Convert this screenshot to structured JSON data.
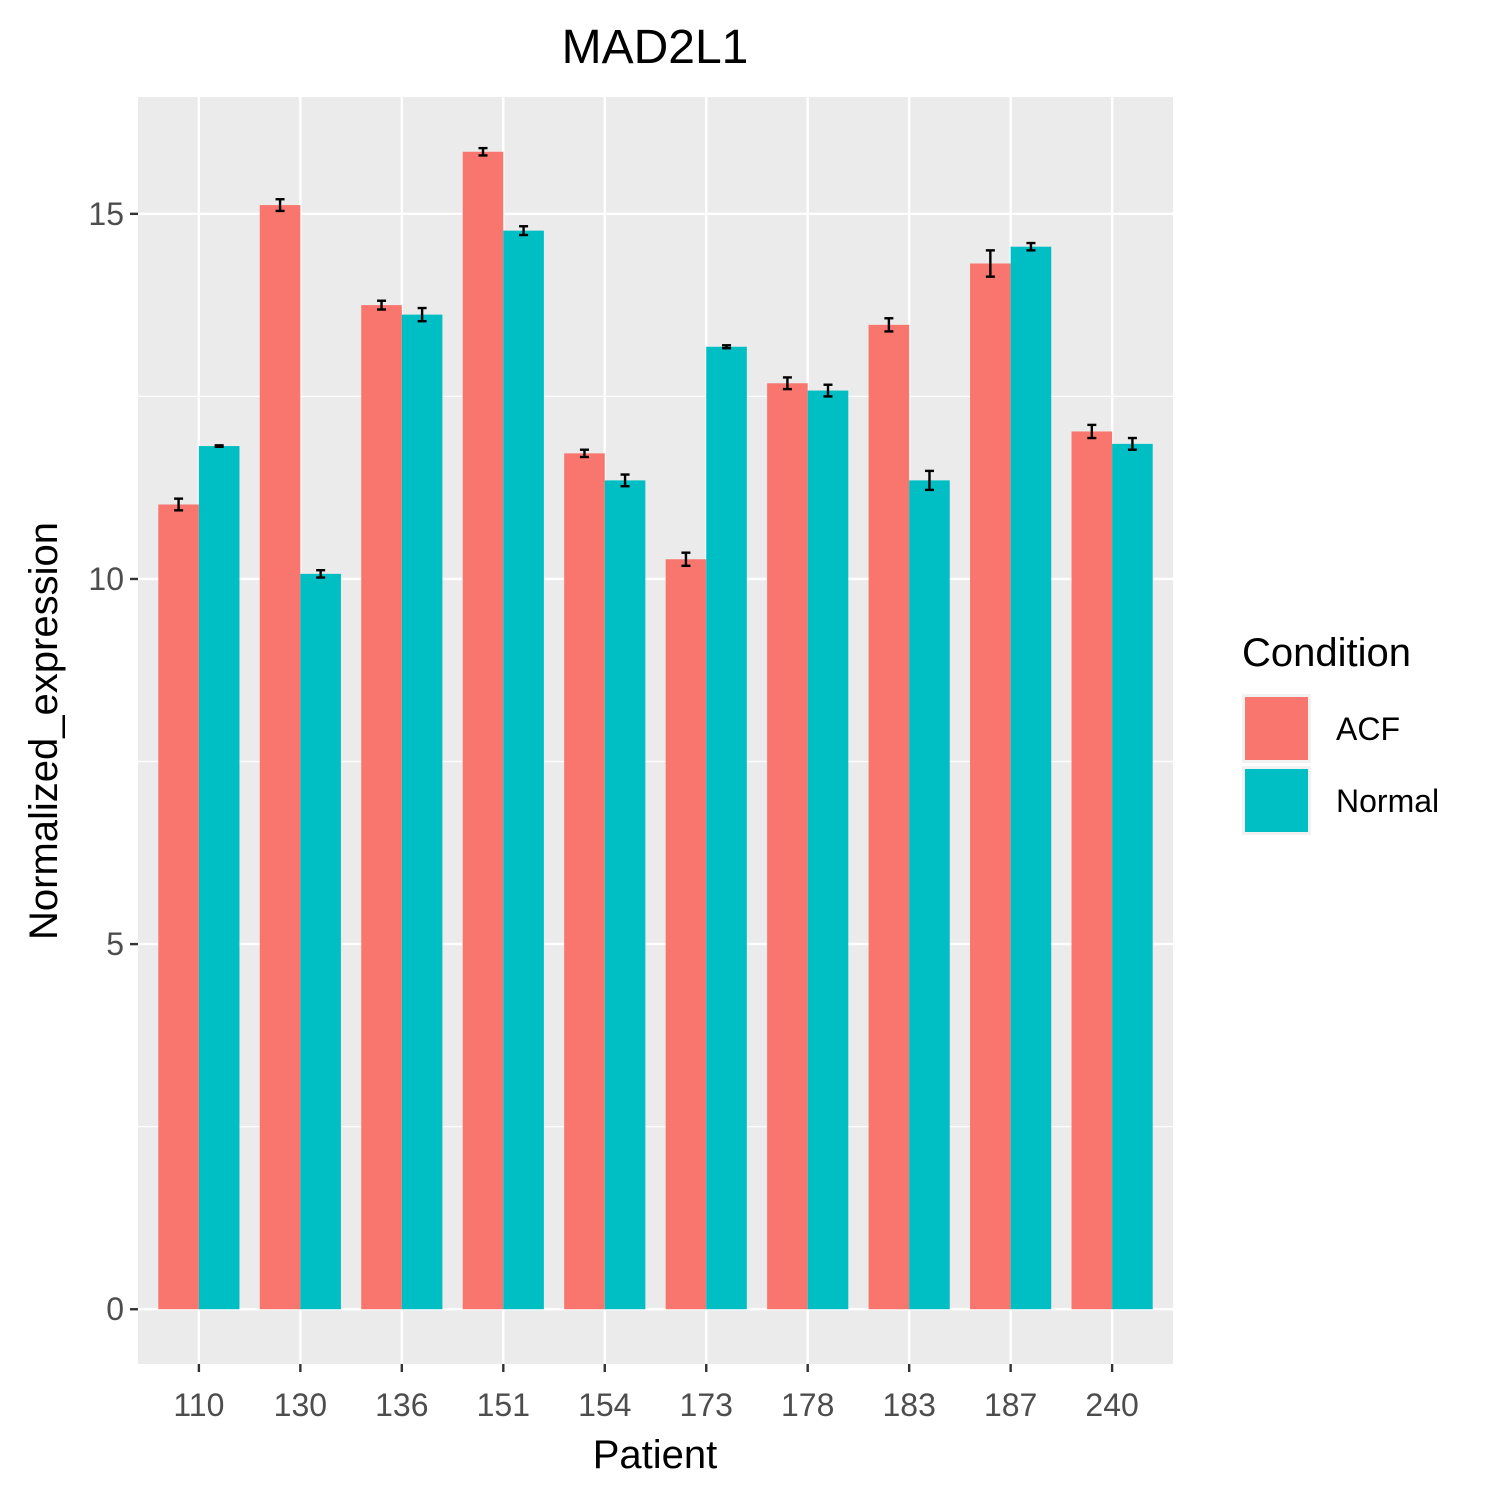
{
  "chart_data": {
    "type": "bar",
    "title": "MAD2L1",
    "xlabel": "Patient",
    "ylabel": "Normalized_expression",
    "categories": [
      "110",
      "130",
      "136",
      "151",
      "154",
      "173",
      "178",
      "183",
      "187",
      "240"
    ],
    "series": [
      {
        "name": "ACF",
        "color": "#F8766D",
        "values": [
          11.02,
          15.12,
          13.75,
          15.85,
          11.72,
          10.27,
          12.68,
          13.48,
          14.32,
          12.02
        ],
        "errors": [
          0.08,
          0.08,
          0.06,
          0.05,
          0.05,
          0.09,
          0.08,
          0.09,
          0.18,
          0.09
        ]
      },
      {
        "name": "Normal",
        "color": "#00BFC4",
        "values": [
          11.82,
          10.07,
          13.62,
          14.77,
          11.35,
          13.18,
          12.58,
          11.35,
          14.55,
          11.85
        ],
        "errors": [
          0.01,
          0.05,
          0.09,
          0.06,
          0.08,
          0.02,
          0.08,
          0.13,
          0.05,
          0.08
        ]
      }
    ],
    "ylim": [
      -0.75,
      16.6
    ],
    "yticks": [
      0,
      5,
      10,
      15
    ],
    "grid": true,
    "legend": {
      "title": "Condition",
      "position": "right"
    }
  }
}
